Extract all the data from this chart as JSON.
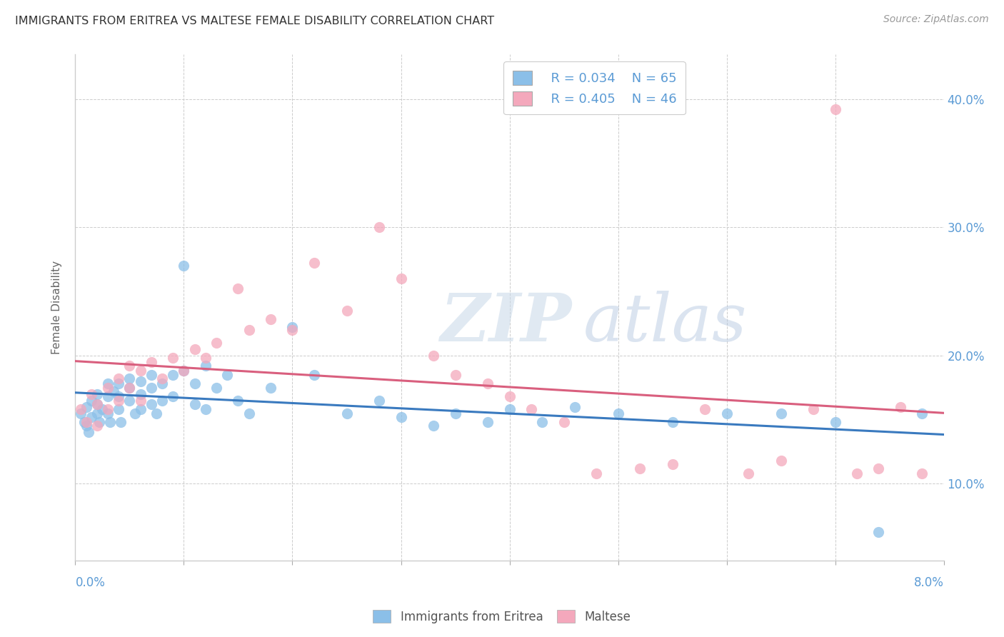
{
  "title": "IMMIGRANTS FROM ERITREA VS MALTESE FEMALE DISABILITY CORRELATION CHART",
  "source": "Source: ZipAtlas.com",
  "ylabel": "Female Disability",
  "yticks": [
    0.1,
    0.2,
    0.3,
    0.4
  ],
  "ytick_labels": [
    "10.0%",
    "20.0%",
    "30.0%",
    "40.0%"
  ],
  "xmin": 0.0,
  "xmax": 0.08,
  "ymin": 0.04,
  "ymax": 0.435,
  "legend_r_blue": "R = 0.034",
  "legend_n_blue": "N = 65",
  "legend_r_pink": "R = 0.405",
  "legend_n_pink": "N = 46",
  "legend_label_blue": "Immigrants from Eritrea",
  "legend_label_pink": "Maltese",
  "blue_color": "#8bbfe8",
  "pink_color": "#f4a8bc",
  "blue_line_color": "#3a7abf",
  "pink_line_color": "#d95f7e",
  "watermark_zip": "ZIP",
  "watermark_atlas": "atlas",
  "blue_scatter_x": [
    0.0005,
    0.0008,
    0.001,
    0.001,
    0.0012,
    0.0015,
    0.0015,
    0.002,
    0.002,
    0.002,
    0.0022,
    0.0025,
    0.003,
    0.003,
    0.003,
    0.0032,
    0.0035,
    0.004,
    0.004,
    0.004,
    0.0042,
    0.005,
    0.005,
    0.005,
    0.0055,
    0.006,
    0.006,
    0.006,
    0.007,
    0.007,
    0.007,
    0.0075,
    0.008,
    0.008,
    0.009,
    0.009,
    0.01,
    0.01,
    0.011,
    0.011,
    0.012,
    0.012,
    0.013,
    0.014,
    0.015,
    0.016,
    0.018,
    0.02,
    0.022,
    0.025,
    0.028,
    0.03,
    0.033,
    0.035,
    0.038,
    0.04,
    0.043,
    0.046,
    0.05,
    0.055,
    0.06,
    0.065,
    0.07,
    0.074,
    0.078
  ],
  "blue_scatter_y": [
    0.155,
    0.148,
    0.16,
    0.145,
    0.14,
    0.165,
    0.152,
    0.17,
    0.162,
    0.155,
    0.148,
    0.158,
    0.178,
    0.168,
    0.155,
    0.148,
    0.172,
    0.178,
    0.168,
    0.158,
    0.148,
    0.182,
    0.175,
    0.165,
    0.155,
    0.18,
    0.17,
    0.158,
    0.185,
    0.175,
    0.162,
    0.155,
    0.178,
    0.165,
    0.185,
    0.168,
    0.27,
    0.188,
    0.178,
    0.162,
    0.192,
    0.158,
    0.175,
    0.185,
    0.165,
    0.155,
    0.175,
    0.222,
    0.185,
    0.155,
    0.165,
    0.152,
    0.145,
    0.155,
    0.148,
    0.158,
    0.148,
    0.16,
    0.155,
    0.148,
    0.155,
    0.155,
    0.148,
    0.062,
    0.155
  ],
  "pink_scatter_x": [
    0.0005,
    0.001,
    0.0015,
    0.002,
    0.002,
    0.003,
    0.003,
    0.004,
    0.004,
    0.005,
    0.005,
    0.006,
    0.006,
    0.007,
    0.008,
    0.009,
    0.01,
    0.011,
    0.012,
    0.013,
    0.015,
    0.016,
    0.018,
    0.02,
    0.022,
    0.025,
    0.028,
    0.03,
    0.033,
    0.035,
    0.038,
    0.04,
    0.042,
    0.045,
    0.048,
    0.052,
    0.055,
    0.058,
    0.062,
    0.065,
    0.068,
    0.07,
    0.072,
    0.074,
    0.076,
    0.078
  ],
  "pink_scatter_y": [
    0.158,
    0.148,
    0.17,
    0.162,
    0.145,
    0.175,
    0.158,
    0.182,
    0.165,
    0.192,
    0.175,
    0.188,
    0.165,
    0.195,
    0.182,
    0.198,
    0.188,
    0.205,
    0.198,
    0.21,
    0.252,
    0.22,
    0.228,
    0.22,
    0.272,
    0.235,
    0.3,
    0.26,
    0.2,
    0.185,
    0.178,
    0.168,
    0.158,
    0.148,
    0.108,
    0.112,
    0.115,
    0.158,
    0.108,
    0.118,
    0.158,
    0.392,
    0.108,
    0.112,
    0.16,
    0.108
  ]
}
